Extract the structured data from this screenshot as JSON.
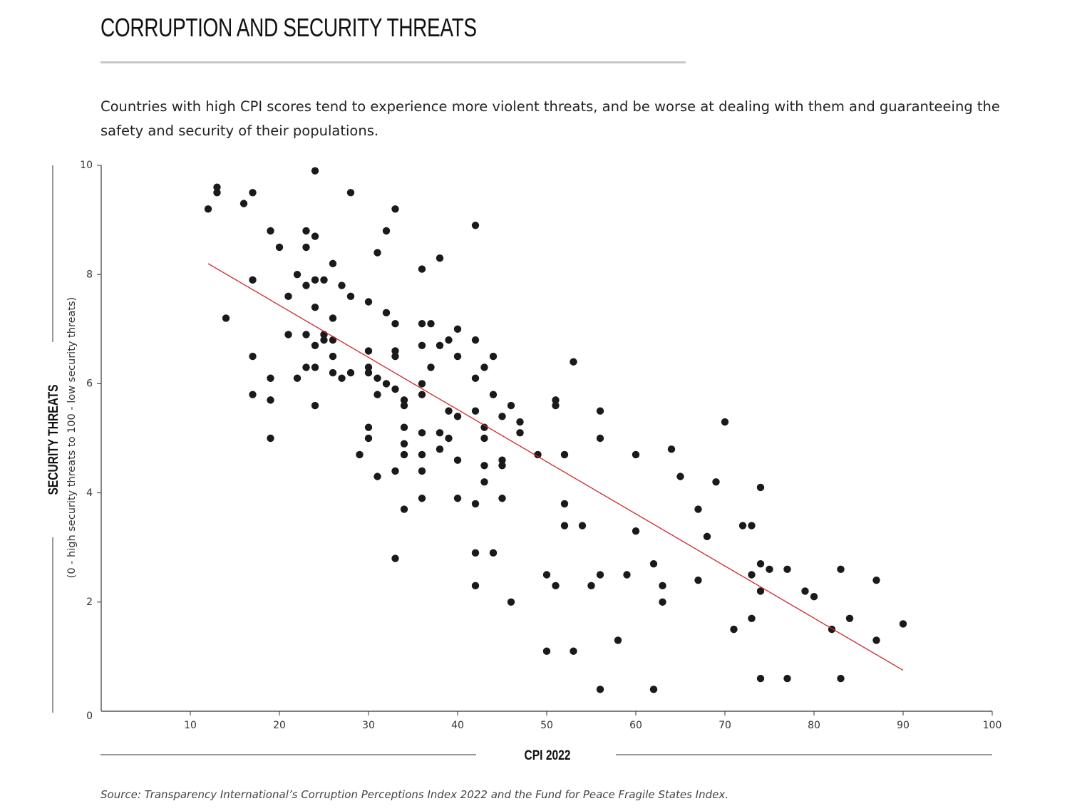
{
  "header": {
    "title": "CORRUPTION AND SECURITY THREATS",
    "subtitle": "Countries with high CPI scores tend to experience more violent threats, and be worse at dealing with them and guaranteeing the safety and security of their populations."
  },
  "footer": {
    "source": "Source: Transparency International’s Corruption Perceptions Index 2022 and the Fund for Peace Fragile States Index."
  },
  "colors": {
    "points": "#1a1a1a",
    "trendline": "#d0242b",
    "axis": "#333333",
    "rule": "#c8c8c8"
  },
  "chart_data": {
    "type": "scatter",
    "title": "CORRUPTION AND SECURITY THREATS",
    "xlabel": "CPI 2022",
    "ylabel": "SECURITY THREATS",
    "ylabel_sub": "(0 - high security threats to 100 - low security threats)",
    "xlim": [
      0,
      100
    ],
    "ylim": [
      0,
      10
    ],
    "xticks": [
      10,
      20,
      30,
      40,
      50,
      60,
      70,
      80,
      90,
      100
    ],
    "yticks": [
      0,
      2,
      4,
      6,
      8,
      10
    ],
    "grid": false,
    "trendline": {
      "x": [
        12,
        90
      ],
      "y": [
        8.2,
        0.75
      ]
    },
    "points": [
      [
        12,
        9.2
      ],
      [
        13,
        9.6
      ],
      [
        13,
        9.5
      ],
      [
        16,
        9.3
      ],
      [
        17,
        9.5
      ],
      [
        14,
        7.2
      ],
      [
        17,
        7.9
      ],
      [
        17,
        6.5
      ],
      [
        17,
        5.8
      ],
      [
        19,
        8.8
      ],
      [
        19,
        6.1
      ],
      [
        19,
        5.7
      ],
      [
        19,
        5.0
      ],
      [
        20,
        8.5
      ],
      [
        21,
        7.6
      ],
      [
        21,
        6.9
      ],
      [
        22,
        8.0
      ],
      [
        22,
        6.1
      ],
      [
        23,
        8.8
      ],
      [
        23,
        8.5
      ],
      [
        23,
        7.8
      ],
      [
        23,
        6.9
      ],
      [
        23,
        6.3
      ],
      [
        24,
        9.9
      ],
      [
        24,
        8.7
      ],
      [
        24,
        7.9
      ],
      [
        24,
        7.4
      ],
      [
        24,
        6.7
      ],
      [
        24,
        6.3
      ],
      [
        24,
        5.6
      ],
      [
        25,
        7.9
      ],
      [
        25,
        6.9
      ],
      [
        25,
        6.8
      ],
      [
        26,
        8.2
      ],
      [
        26,
        7.2
      ],
      [
        26,
        6.8
      ],
      [
        26,
        6.5
      ],
      [
        26,
        6.2
      ],
      [
        27,
        7.8
      ],
      [
        27,
        6.1
      ],
      [
        28,
        9.5
      ],
      [
        28,
        7.6
      ],
      [
        28,
        6.2
      ],
      [
        29,
        4.7
      ],
      [
        30,
        7.5
      ],
      [
        30,
        6.6
      ],
      [
        30,
        6.3
      ],
      [
        30,
        6.2
      ],
      [
        30,
        5.2
      ],
      [
        30,
        5.0
      ],
      [
        31,
        8.4
      ],
      [
        31,
        6.1
      ],
      [
        31,
        5.8
      ],
      [
        31,
        4.3
      ],
      [
        32,
        8.8
      ],
      [
        32,
        7.3
      ],
      [
        32,
        6.0
      ],
      [
        33,
        9.2
      ],
      [
        33,
        7.1
      ],
      [
        33,
        6.6
      ],
      [
        33,
        6.5
      ],
      [
        33,
        5.9
      ],
      [
        33,
        4.4
      ],
      [
        33,
        2.8
      ],
      [
        34,
        5.7
      ],
      [
        34,
        5.6
      ],
      [
        34,
        5.2
      ],
      [
        34,
        4.9
      ],
      [
        34,
        4.7
      ],
      [
        34,
        3.7
      ],
      [
        36,
        8.1
      ],
      [
        36,
        7.1
      ],
      [
        36,
        6.7
      ],
      [
        36,
        6.0
      ],
      [
        36,
        5.8
      ],
      [
        36,
        5.1
      ],
      [
        36,
        4.7
      ],
      [
        36,
        4.4
      ],
      [
        36,
        3.9
      ],
      [
        37,
        7.1
      ],
      [
        37,
        6.3
      ],
      [
        38,
        8.3
      ],
      [
        38,
        6.7
      ],
      [
        38,
        5.1
      ],
      [
        38,
        4.8
      ],
      [
        39,
        6.8
      ],
      [
        39,
        5.5
      ],
      [
        39,
        5.0
      ],
      [
        40,
        7.0
      ],
      [
        40,
        6.5
      ],
      [
        40,
        5.4
      ],
      [
        40,
        4.6
      ],
      [
        40,
        3.9
      ],
      [
        42,
        8.9
      ],
      [
        42,
        6.8
      ],
      [
        42,
        6.1
      ],
      [
        42,
        5.5
      ],
      [
        42,
        3.8
      ],
      [
        42,
        2.9
      ],
      [
        42,
        2.3
      ],
      [
        43,
        6.3
      ],
      [
        43,
        5.2
      ],
      [
        43,
        5.0
      ],
      [
        43,
        4.5
      ],
      [
        43,
        4.2
      ],
      [
        44,
        6.5
      ],
      [
        44,
        5.8
      ],
      [
        44,
        2.9
      ],
      [
        45,
        5.4
      ],
      [
        45,
        4.6
      ],
      [
        45,
        4.5
      ],
      [
        45,
        3.9
      ],
      [
        46,
        5.6
      ],
      [
        46,
        2.0
      ],
      [
        47,
        5.3
      ],
      [
        47,
        5.1
      ],
      [
        49,
        4.7
      ],
      [
        50,
        2.5
      ],
      [
        50,
        1.1
      ],
      [
        51,
        5.7
      ],
      [
        51,
        5.6
      ],
      [
        51,
        2.3
      ],
      [
        52,
        4.7
      ],
      [
        52,
        3.8
      ],
      [
        52,
        3.4
      ],
      [
        53,
        6.4
      ],
      [
        53,
        1.1
      ],
      [
        54,
        3.4
      ],
      [
        55,
        2.3
      ],
      [
        56,
        5.5
      ],
      [
        56,
        5.0
      ],
      [
        56,
        2.5
      ],
      [
        56,
        0.4
      ],
      [
        58,
        1.3
      ],
      [
        59,
        2.5
      ],
      [
        60,
        4.7
      ],
      [
        60,
        3.3
      ],
      [
        62,
        2.7
      ],
      [
        62,
        0.4
      ],
      [
        63,
        2.3
      ],
      [
        63,
        2.0
      ],
      [
        64,
        4.8
      ],
      [
        65,
        4.3
      ],
      [
        67,
        3.7
      ],
      [
        67,
        2.4
      ],
      [
        68,
        3.2
      ],
      [
        69,
        4.2
      ],
      [
        70,
        5.3
      ],
      [
        71,
        1.5
      ],
      [
        72,
        3.4
      ],
      [
        73,
        3.4
      ],
      [
        73,
        2.5
      ],
      [
        73,
        1.7
      ],
      [
        74,
        4.1
      ],
      [
        74,
        2.7
      ],
      [
        74,
        2.2
      ],
      [
        74,
        0.6
      ],
      [
        75,
        2.6
      ],
      [
        77,
        2.6
      ],
      [
        77,
        0.6
      ],
      [
        79,
        2.2
      ],
      [
        80,
        2.1
      ],
      [
        82,
        1.5
      ],
      [
        83,
        2.6
      ],
      [
        83,
        0.6
      ],
      [
        84,
        1.7
      ],
      [
        87,
        2.4
      ],
      [
        87,
        1.3
      ],
      [
        90,
        1.6
      ]
    ]
  }
}
